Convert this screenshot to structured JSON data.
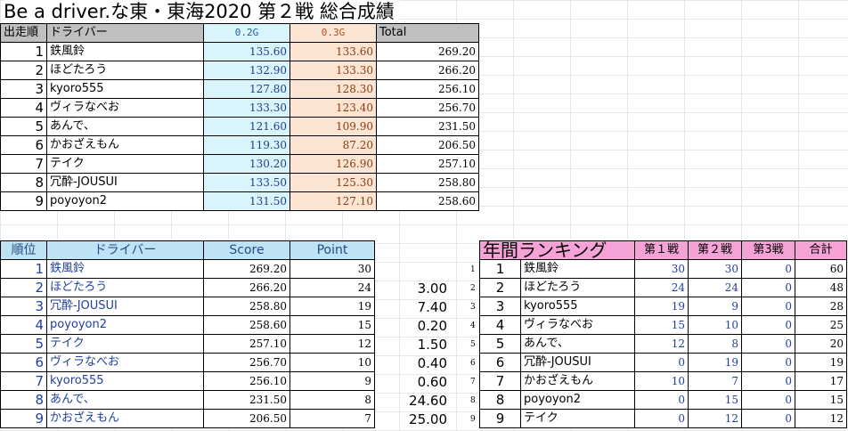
{
  "title": "Be a driver.な東・東海2020 第２戦 総合成績",
  "results": {
    "headers": [
      "出走順",
      "ドライバー",
      "0.2G",
      "0.3G",
      "Total"
    ],
    "rows": [
      {
        "no": "1",
        "driver": "鉄風鈴",
        "g02": "135.60",
        "g03": "133.60",
        "total": "269.20"
      },
      {
        "no": "2",
        "driver": "ほどたろう",
        "g02": "132.90",
        "g03": "133.30",
        "total": "266.20"
      },
      {
        "no": "3",
        "driver": "kyoro555",
        "g02": "127.80",
        "g03": "128.30",
        "total": "256.10"
      },
      {
        "no": "4",
        "driver": "ヴィラなべお",
        "g02": "133.30",
        "g03": "123.40",
        "total": "256.70"
      },
      {
        "no": "5",
        "driver": "あんで、",
        "g02": "121.60",
        "g03": "109.90",
        "total": "231.50"
      },
      {
        "no": "6",
        "driver": "かおざえもん",
        "g02": "119.30",
        "g03": "87.20",
        "total": "206.50"
      },
      {
        "no": "7",
        "driver": "テイク",
        "g02": "130.20",
        "g03": "126.90",
        "total": "257.10"
      },
      {
        "no": "8",
        "driver": "冗酔-JOUSUI",
        "g02": "133.50",
        "g03": "125.30",
        "total": "258.80"
      },
      {
        "no": "9",
        "driver": "poyoyon2",
        "g02": "131.50",
        "g03": "127.10",
        "total": "258.60"
      }
    ]
  },
  "standings": {
    "headers": [
      "順位",
      "ドライバー",
      "Score",
      "Point"
    ],
    "rows": [
      {
        "rank": "1",
        "driver": "鉄風鈴",
        "score": "269.20",
        "point": "30",
        "diff": ""
      },
      {
        "rank": "2",
        "driver": "ほどたろう",
        "score": "266.20",
        "point": "24",
        "diff": "3.00"
      },
      {
        "rank": "3",
        "driver": "冗酔-JOUSUI",
        "score": "258.80",
        "point": "19",
        "diff": "7.40"
      },
      {
        "rank": "4",
        "driver": "poyoyon2",
        "score": "258.60",
        "point": "15",
        "diff": "0.20"
      },
      {
        "rank": "5",
        "driver": "テイク",
        "score": "257.10",
        "point": "12",
        "diff": "1.50"
      },
      {
        "rank": "6",
        "driver": "ヴィラなべお",
        "score": "256.70",
        "point": "10",
        "diff": "0.40"
      },
      {
        "rank": "7",
        "driver": "kyoro555",
        "score": "256.10",
        "point": "9",
        "diff": "0.60"
      },
      {
        "rank": "8",
        "driver": "あんで、",
        "score": "231.50",
        "point": "8",
        "diff": "24.60"
      },
      {
        "rank": "9",
        "driver": "かおざえもん",
        "score": "206.50",
        "point": "7",
        "diff": "25.00"
      }
    ]
  },
  "annual": {
    "headers": [
      "年間ランキング",
      "第１戦",
      "第２戦",
      "第3戦",
      "合計"
    ],
    "rows": [
      {
        "idx": "1",
        "rank": "1",
        "driver": "鉄風鈴",
        "r1": "30",
        "r2": "30",
        "r3": "0",
        "sum": "60"
      },
      {
        "idx": "2",
        "rank": "2",
        "driver": "ほどたろう",
        "r1": "24",
        "r2": "24",
        "r3": "0",
        "sum": "48"
      },
      {
        "idx": "3",
        "rank": "3",
        "driver": "kyoro555",
        "r1": "19",
        "r2": "9",
        "r3": "0",
        "sum": "28"
      },
      {
        "idx": "4",
        "rank": "4",
        "driver": "ヴィラなべお",
        "r1": "15",
        "r2": "10",
        "r3": "0",
        "sum": "25"
      },
      {
        "idx": "5",
        "rank": "5",
        "driver": "あんで、",
        "r1": "12",
        "r2": "8",
        "r3": "0",
        "sum": "20"
      },
      {
        "idx": "6",
        "rank": "6",
        "driver": "冗酔-JOUSUI",
        "r1": "0",
        "r2": "19",
        "r3": "0",
        "sum": "19"
      },
      {
        "idx": "7",
        "rank": "7",
        "driver": "かおざえもん",
        "r1": "10",
        "r2": "7",
        "r3": "0",
        "sum": "17"
      },
      {
        "idx": "8",
        "rank": "8",
        "driver": "poyoyon2",
        "r1": "0",
        "r2": "15",
        "r3": "0",
        "sum": "15"
      },
      {
        "idx": "9",
        "rank": "9",
        "driver": "テイク",
        "r1": "0",
        "r2": "12",
        "r3": "0",
        "sum": "12"
      }
    ]
  }
}
